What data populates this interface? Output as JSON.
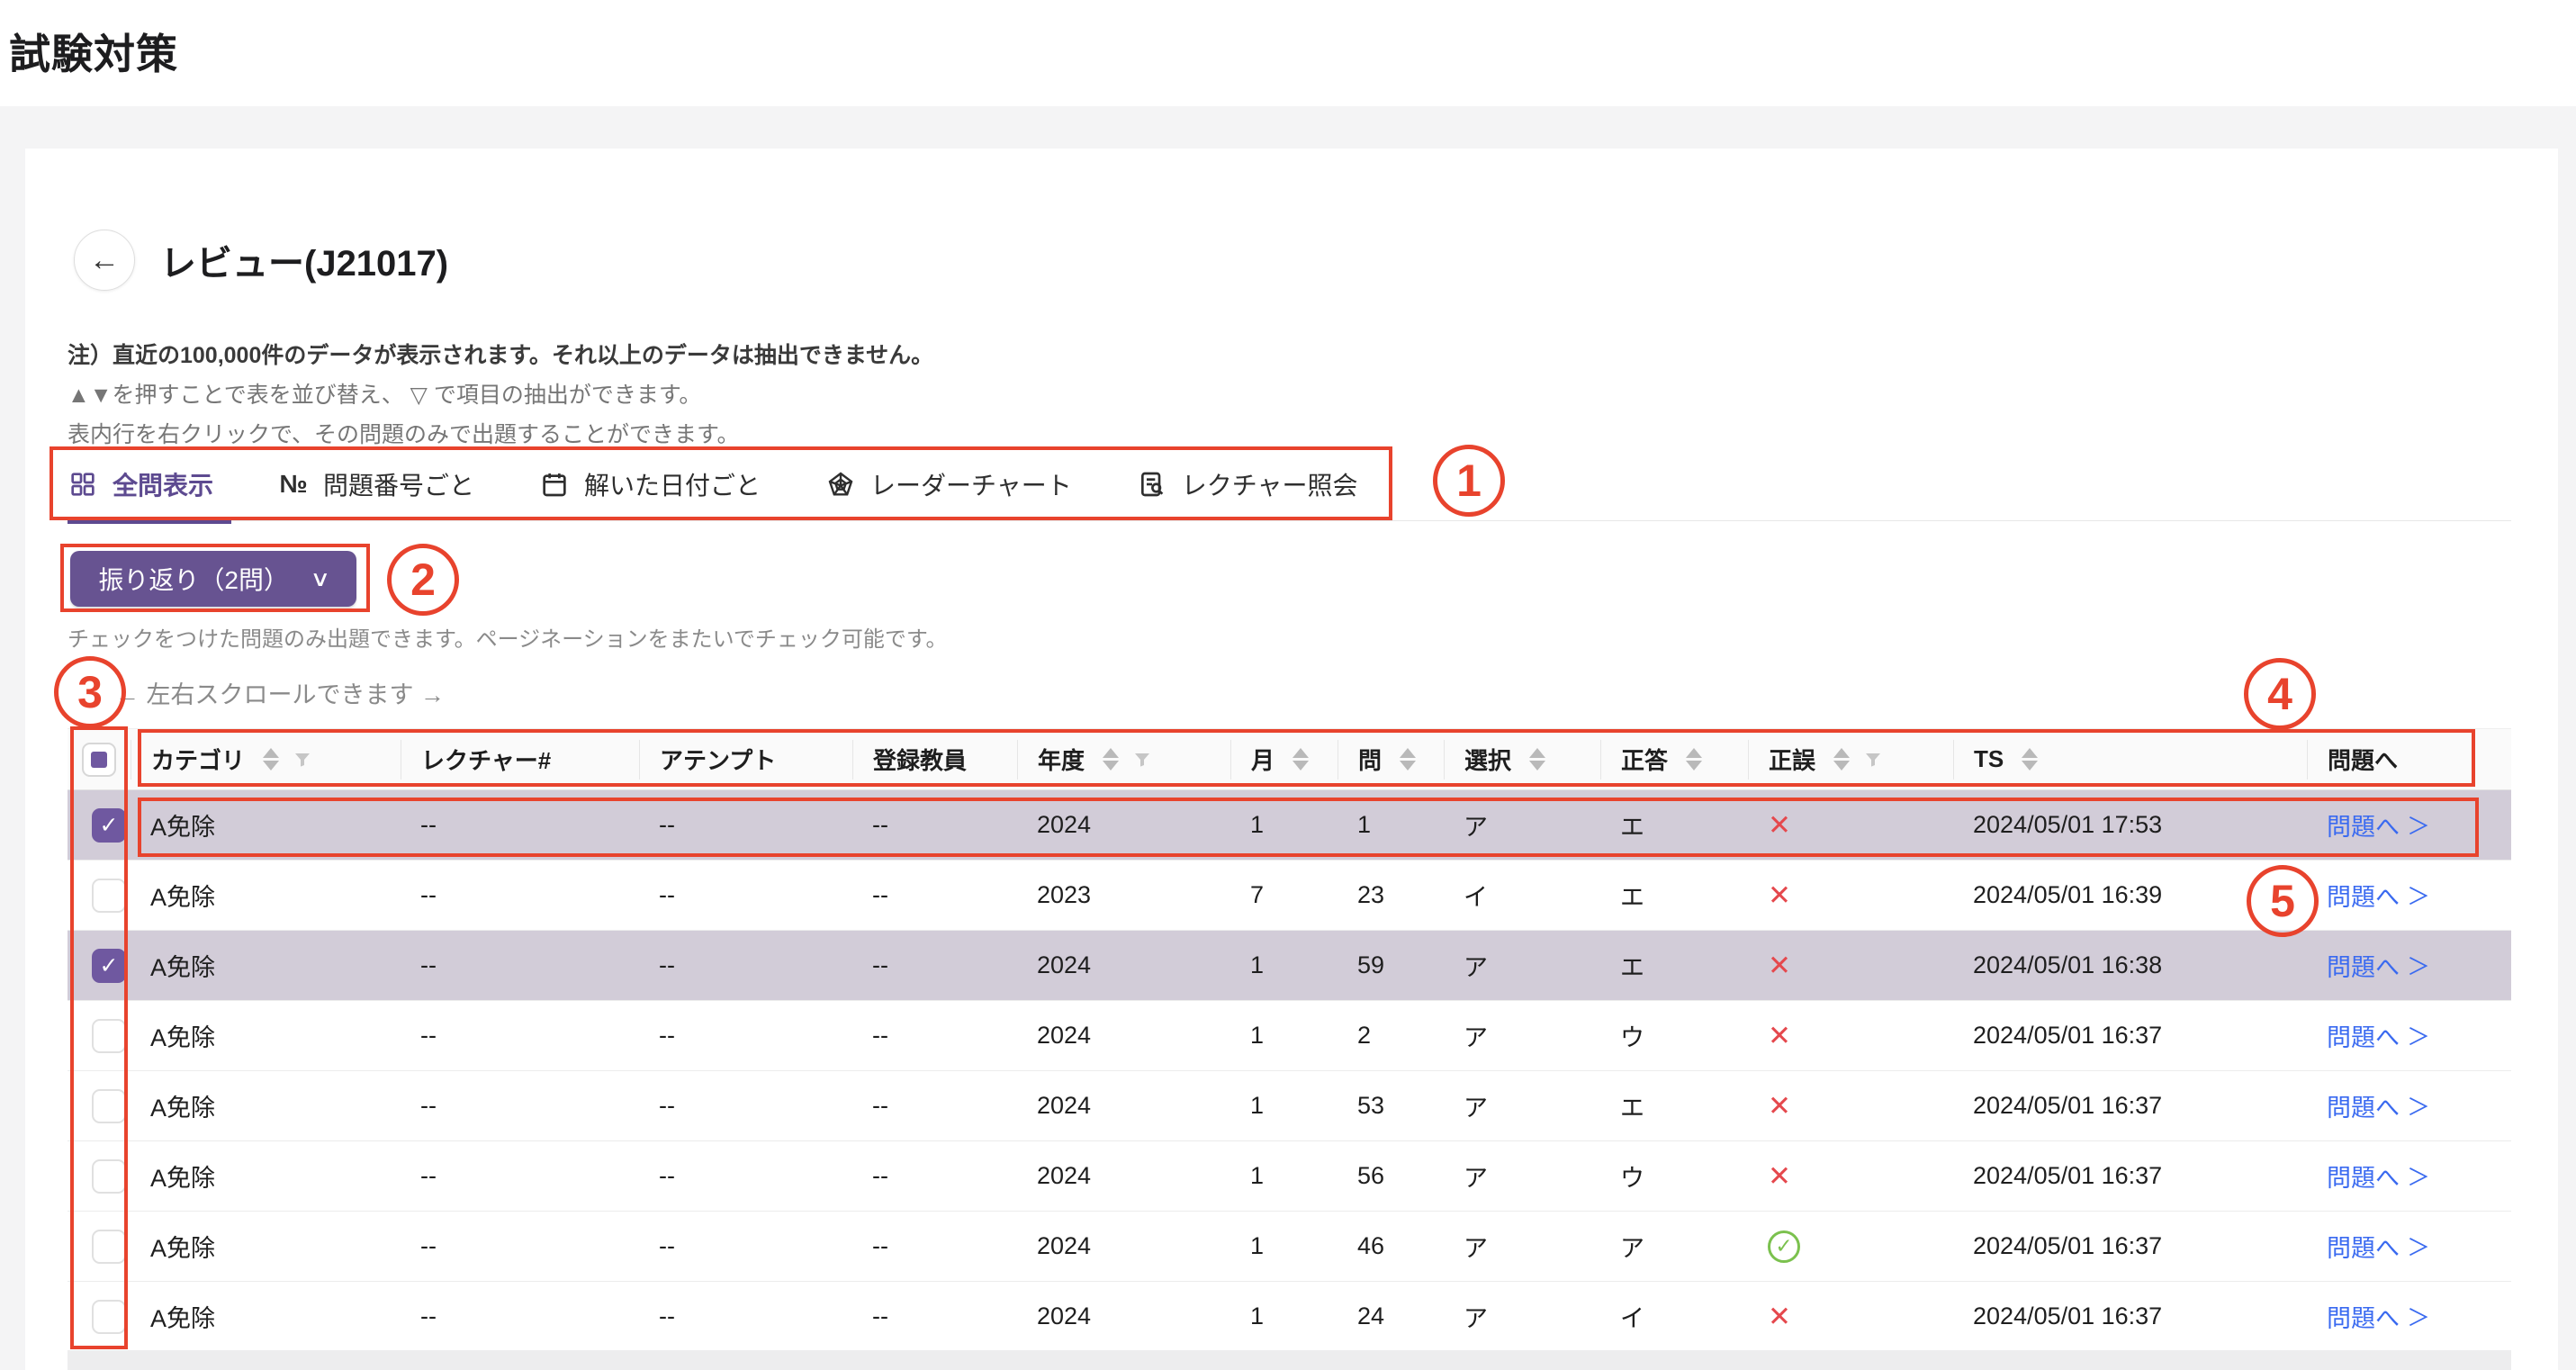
{
  "page": {
    "title": "試験対策"
  },
  "card": {
    "title": "レビュー(J21017)",
    "back_icon": "←",
    "notes": {
      "line1": "注）直近の100,000件のデータが表示されます。それ以上のデータは抽出できません。",
      "line2": "▲▼を押すことで表を並び替え、 ▽ で項目の抽出ができます。",
      "line3": "表内行を右クリックで、その問題のみで出題することができます。"
    },
    "tabs": [
      {
        "label": "全問表示",
        "icon": "grid-icon",
        "active": true
      },
      {
        "label": "問題番号ごと",
        "icon": "numero-icon",
        "active": false
      },
      {
        "label": "解いた日付ごと",
        "icon": "calendar-icon",
        "active": false
      },
      {
        "label": "レーダーチャート",
        "icon": "radar-icon",
        "active": false
      },
      {
        "label": "レクチャー照会",
        "icon": "lecture-search-icon",
        "active": false
      }
    ],
    "review_button": {
      "label": "振り返り（2問）",
      "chevron": "∨"
    },
    "check_hint": "チェックをつけた問題のみ出題できます。ページネーションをまたいでチェック可能です。",
    "scroll_hint": "← 左右スクロールできます →"
  },
  "table": {
    "columns": [
      {
        "key": "cat",
        "label": "カテゴリ",
        "sort": true,
        "filter": true
      },
      {
        "key": "lecture",
        "label": "レクチャー#",
        "sort": false,
        "filter": false
      },
      {
        "key": "attempt",
        "label": "アテンプト",
        "sort": false,
        "filter": false
      },
      {
        "key": "teacher",
        "label": "登録教員",
        "sort": false,
        "filter": false
      },
      {
        "key": "year",
        "label": "年度",
        "sort": true,
        "filter": true
      },
      {
        "key": "month",
        "label": "月",
        "sort": true,
        "filter": false
      },
      {
        "key": "q",
        "label": "問",
        "sort": true,
        "filter": false
      },
      {
        "key": "choice",
        "label": "選択",
        "sort": true,
        "filter": false
      },
      {
        "key": "correct",
        "label": "正答",
        "sort": true,
        "filter": false
      },
      {
        "key": "result",
        "label": "正誤",
        "sort": true,
        "filter": true
      },
      {
        "key": "ts",
        "label": "TS",
        "sort": true,
        "filter": false
      },
      {
        "key": "link",
        "label": "問題へ",
        "sort": false,
        "filter": false
      }
    ],
    "link_label": "問題へ",
    "link_chevron": "＞",
    "result_icons": {
      "wrong": "✕",
      "correct": "✓"
    },
    "rows": [
      {
        "checked": true,
        "cat": "A免除",
        "lecture": "--",
        "attempt": "--",
        "teacher": "--",
        "year": "2024",
        "month": "1",
        "q": "1",
        "choice": "ア",
        "correct": "エ",
        "result": "wrong",
        "ts": "2024/05/01 17:53"
      },
      {
        "checked": false,
        "cat": "A免除",
        "lecture": "--",
        "attempt": "--",
        "teacher": "--",
        "year": "2023",
        "month": "7",
        "q": "23",
        "choice": "イ",
        "correct": "エ",
        "result": "wrong",
        "ts": "2024/05/01 16:39"
      },
      {
        "checked": true,
        "cat": "A免除",
        "lecture": "--",
        "attempt": "--",
        "teacher": "--",
        "year": "2024",
        "month": "1",
        "q": "59",
        "choice": "ア",
        "correct": "エ",
        "result": "wrong",
        "ts": "2024/05/01 16:38"
      },
      {
        "checked": false,
        "cat": "A免除",
        "lecture": "--",
        "attempt": "--",
        "teacher": "--",
        "year": "2024",
        "month": "1",
        "q": "2",
        "choice": "ア",
        "correct": "ウ",
        "result": "wrong",
        "ts": "2024/05/01 16:37"
      },
      {
        "checked": false,
        "cat": "A免除",
        "lecture": "--",
        "attempt": "--",
        "teacher": "--",
        "year": "2024",
        "month": "1",
        "q": "53",
        "choice": "ア",
        "correct": "エ",
        "result": "wrong",
        "ts": "2024/05/01 16:37"
      },
      {
        "checked": false,
        "cat": "A免除",
        "lecture": "--",
        "attempt": "--",
        "teacher": "--",
        "year": "2024",
        "month": "1",
        "q": "56",
        "choice": "ア",
        "correct": "ウ",
        "result": "wrong",
        "ts": "2024/05/01 16:37"
      },
      {
        "checked": false,
        "cat": "A免除",
        "lecture": "--",
        "attempt": "--",
        "teacher": "--",
        "year": "2024",
        "month": "1",
        "q": "46",
        "choice": "ア",
        "correct": "ア",
        "result": "correct",
        "ts": "2024/05/01 16:37"
      },
      {
        "checked": false,
        "cat": "A免除",
        "lecture": "--",
        "attempt": "--",
        "teacher": "--",
        "year": "2024",
        "month": "1",
        "q": "24",
        "choice": "ア",
        "correct": "イ",
        "result": "wrong",
        "ts": "2024/05/01 16:37"
      }
    ]
  },
  "annotations": {
    "n1": "1",
    "n2": "2",
    "n3": "3",
    "n4": "4",
    "n5": "5"
  },
  "colors": {
    "accent_purple": "#675391",
    "row_highlight": "#d2ccd8",
    "link_blue": "#3a6af0",
    "wrong_red": "#e5484d",
    "correct_green": "#7bc14e",
    "annotation_red": "#e8432d",
    "page_bg": "#f4f4f5"
  }
}
